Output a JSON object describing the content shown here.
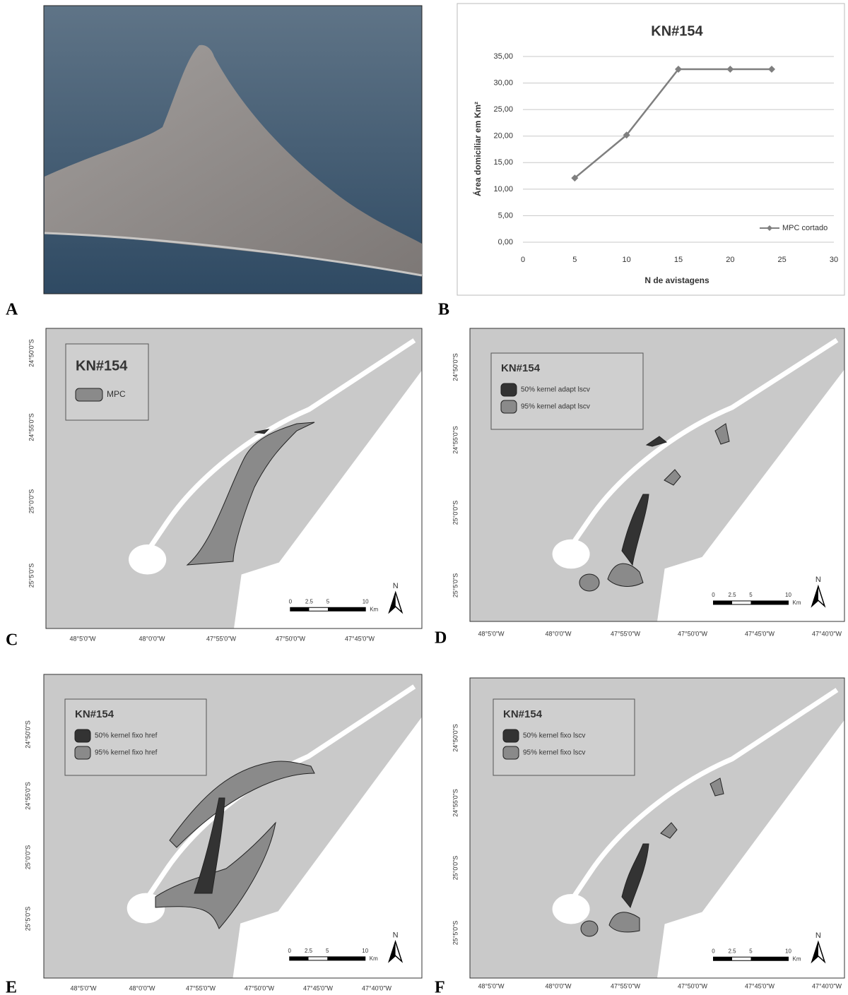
{
  "photo": {
    "label": "A"
  },
  "chart_data": {
    "type": "line",
    "panel_label": "B",
    "title": "KN#154",
    "y_label": "Área domiciliar em Km²",
    "x_label": "N de avistagens",
    "x": [
      5,
      10,
      15,
      20,
      24
    ],
    "series": [
      {
        "name": "MPC cortado",
        "color": "#7f7f7f",
        "values": [
          12.1,
          20.2,
          32.6,
          32.6,
          32.6
        ]
      }
    ],
    "xlim": [
      0,
      30
    ],
    "xticks": [
      0,
      5,
      10,
      15,
      20,
      25,
      30
    ],
    "ylim": [
      0,
      35
    ],
    "yticks": [
      {
        "value": 0,
        "label": "0,00"
      },
      {
        "value": 5,
        "label": "5,00"
      },
      {
        "value": 10,
        "label": "10,00"
      },
      {
        "value": 15,
        "label": "15,00"
      },
      {
        "value": 20,
        "label": "20,00"
      },
      {
        "value": 25,
        "label": "25,00"
      },
      {
        "value": 30,
        "label": "30,00"
      },
      {
        "value": 35,
        "label": "35,00"
      }
    ],
    "grid": true,
    "legend": "lower right"
  },
  "maps": [
    {
      "label": "C",
      "legend_title": "KN#154",
      "legend_items": [
        "MPC"
      ],
      "x_ticks": [
        "48°5'0\"W",
        "48°0'0\"W",
        "47°55'0\"W",
        "47°50'0\"W",
        "47°45'0\"W"
      ],
      "y_ticks": [
        "24°50'0\"S",
        "24°55'0\"S",
        "25°0'0\"S",
        "25°5'0\"S"
      ],
      "scale_labels": [
        "0",
        "2.5",
        "5",
        "10",
        "Km"
      ],
      "north": "N"
    },
    {
      "label": "D",
      "legend_title": "KN#154",
      "legend_items": [
        "50% kernel adapt lscv",
        "95% kernel adapt lscv"
      ],
      "x_ticks": [
        "48°5'0\"W",
        "48°0'0\"W",
        "47°55'0\"W",
        "47°50'0\"W",
        "47°45'0\"W",
        "47°40'0\"W"
      ],
      "y_ticks": [
        "24°50'0\"S",
        "24°55'0\"S",
        "25°0'0\"S",
        "25°5'0\"S"
      ],
      "scale_labels": [
        "0",
        "2.5",
        "5",
        "10",
        "Km"
      ],
      "north": "N"
    },
    {
      "label": "E",
      "legend_title": "KN#154",
      "legend_items": [
        "50% kernel fixo href",
        "95% kernel fixo href"
      ],
      "x_ticks": [
        "48°5'0\"W",
        "48°0'0\"W",
        "47°55'0\"W",
        "47°50'0\"W",
        "47°45'0\"W",
        "47°40'0\"W"
      ],
      "y_ticks": [
        "24°50'0\"S",
        "24°55'0\"S",
        "25°0'0\"S",
        "25°5'0\"S"
      ],
      "scale_labels": [
        "0",
        "2.5",
        "5",
        "10",
        "Km"
      ],
      "north": "N"
    },
    {
      "label": "F",
      "legend_title": "KN#154",
      "legend_items": [
        "50% kernel fixo lscv",
        "95% kernel fixo lscv"
      ],
      "x_ticks": [
        "48°5'0\"W",
        "48°0'0\"W",
        "47°55'0\"W",
        "47°50'0\"W",
        "47°45'0\"W",
        "47°40'0\"W"
      ],
      "y_ticks": [
        "24°50'0\"S",
        "24°55'0\"S",
        "25°0'0\"S",
        "25°5'0\"S"
      ],
      "scale_labels": [
        "0",
        "2.5",
        "5",
        "10",
        "Km"
      ],
      "north": "N"
    }
  ]
}
